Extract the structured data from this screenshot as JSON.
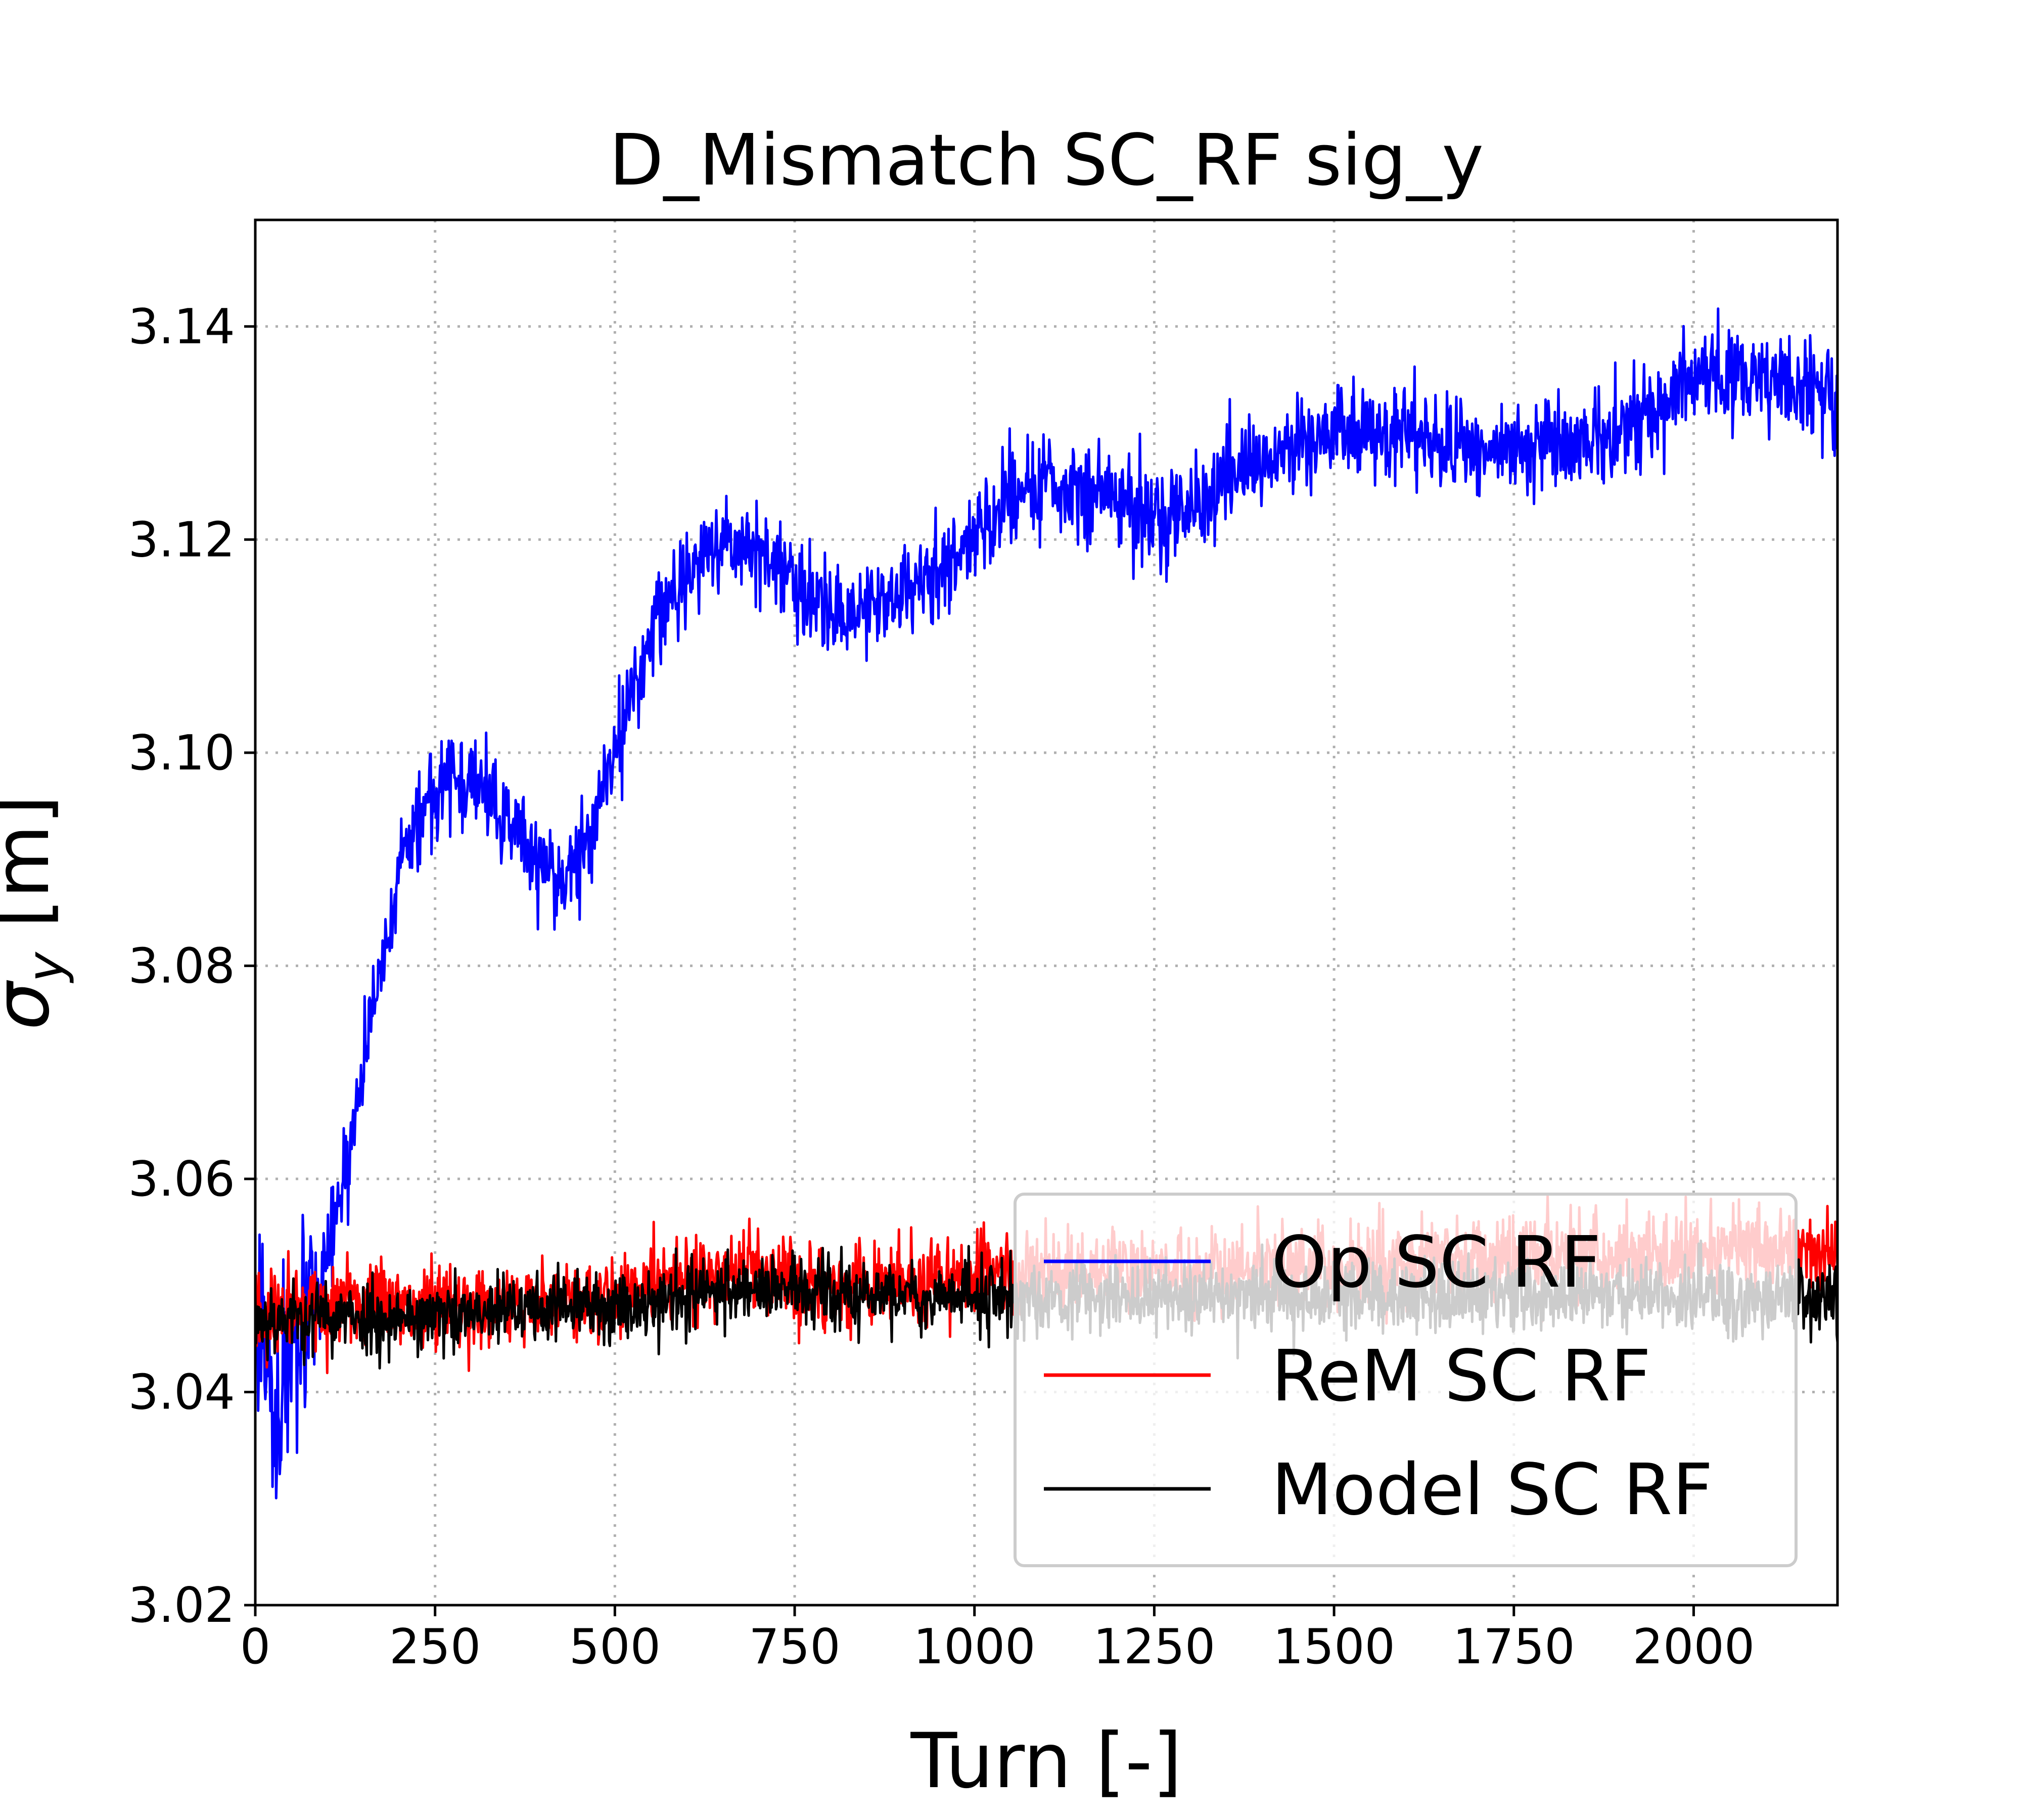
{
  "chart_data": {
    "type": "line",
    "title": "D_Mismatch SC_RF sig_y",
    "xlabel": "Turn [-]",
    "ylabel_main": "σ",
    "ylabel_sub": "y",
    "ylabel_unit": " [m]",
    "xlim": [
      0,
      2200
    ],
    "ylim": [
      3.02,
      3.15
    ],
    "xticks": [
      0,
      250,
      500,
      750,
      1000,
      1250,
      1500,
      1750,
      2000
    ],
    "xtick_labels": [
      "0",
      "250",
      "500",
      "750",
      "1000",
      "1250",
      "1500",
      "1750",
      "2000"
    ],
    "yticks": [
      3.02,
      3.04,
      3.06,
      3.08,
      3.1,
      3.12,
      3.14
    ],
    "ytick_labels": [
      "3.02",
      "3.04",
      "3.06",
      "3.08",
      "3.10",
      "3.12",
      "3.14"
    ],
    "grid": true,
    "legend_position": "lower-right",
    "x_step": 1,
    "series": [
      {
        "name": "Op SC RF",
        "color": "#0000ff",
        "x": [
          0,
          10,
          25,
          40,
          60,
          80,
          100,
          130,
          170,
          200,
          230,
          260,
          300,
          350,
          400,
          430,
          460,
          500,
          560,
          640,
          700,
          750,
          800,
          850,
          900,
          950,
          1000,
          1050,
          1100,
          1200,
          1250,
          1300,
          1400,
          1500,
          1600,
          1700,
          1800,
          1900,
          2000,
          2100,
          2200
        ],
        "values": [
          3.046,
          3.048,
          3.037,
          3.04,
          3.043,
          3.047,
          3.052,
          3.062,
          3.079,
          3.088,
          3.094,
          3.098,
          3.097,
          3.094,
          3.089,
          3.088,
          3.092,
          3.1,
          3.113,
          3.12,
          3.119,
          3.116,
          3.113,
          3.114,
          3.115,
          3.117,
          3.121,
          3.124,
          3.125,
          3.124,
          3.122,
          3.123,
          3.127,
          3.131,
          3.13,
          3.128,
          3.129,
          3.13,
          3.135,
          3.135,
          3.134
        ],
        "noise": 0.0036
      },
      {
        "name": "ReM SC RF",
        "color": "#ff0000",
        "x": [
          0,
          100,
          200,
          300,
          400,
          500,
          600,
          700,
          800,
          900,
          1000,
          1100,
          1200,
          1300,
          1400,
          1500,
          1600,
          1700,
          1800,
          1900,
          2000,
          2100,
          2200
        ],
        "values": [
          3.047,
          3.048,
          3.048,
          3.048,
          3.048,
          3.049,
          3.051,
          3.051,
          3.05,
          3.05,
          3.051,
          3.051,
          3.052,
          3.051,
          3.052,
          3.052,
          3.052,
          3.053,
          3.053,
          3.053,
          3.053,
          3.054,
          3.053
        ],
        "noise": 0.0033
      },
      {
        "name": "Model SC RF",
        "color": "#000000",
        "x": [
          0,
          100,
          200,
          300,
          400,
          500,
          600,
          700,
          800,
          900,
          1000,
          1100,
          1200,
          1300,
          1400,
          1500,
          1600,
          1700,
          1800,
          1900,
          2000,
          2100,
          2200
        ],
        "values": [
          3.047,
          3.047,
          3.047,
          3.047,
          3.048,
          3.048,
          3.049,
          3.05,
          3.049,
          3.049,
          3.049,
          3.049,
          3.049,
          3.049,
          3.049,
          3.049,
          3.049,
          3.049,
          3.049,
          3.049,
          3.049,
          3.049,
          3.049
        ],
        "noise": 0.0028
      }
    ]
  }
}
